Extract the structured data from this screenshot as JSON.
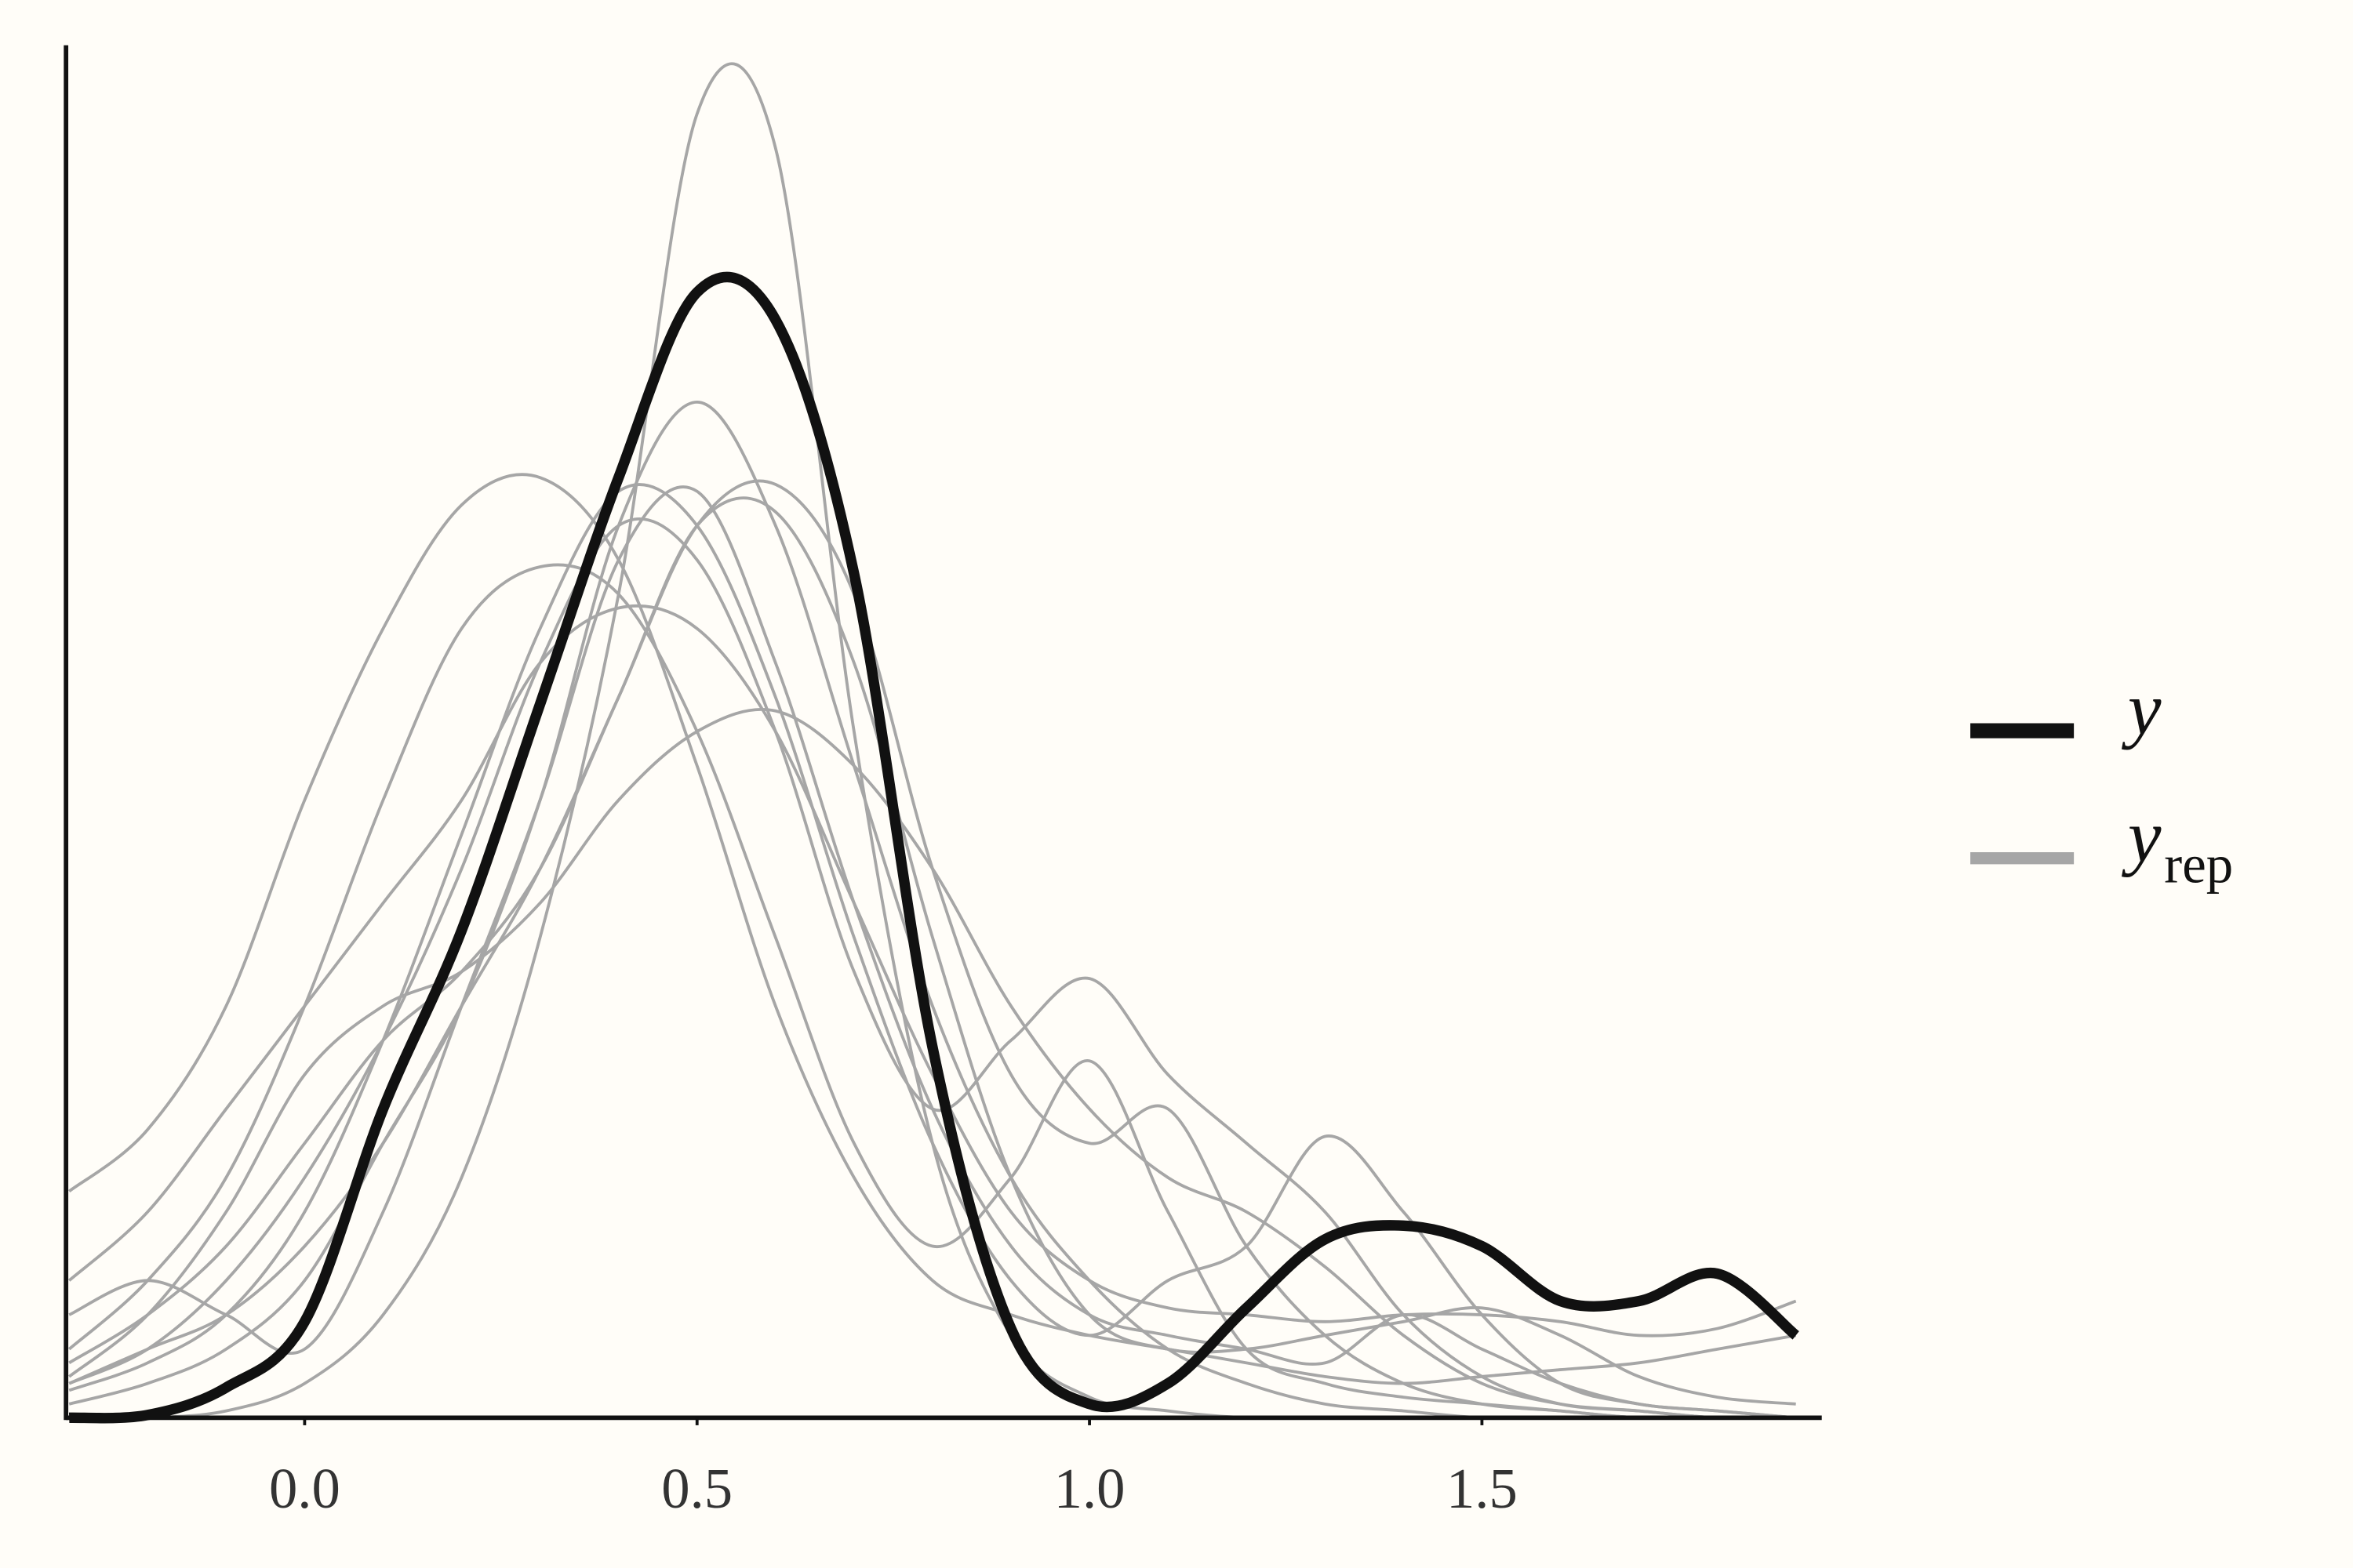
{
  "chart_data": {
    "type": "line",
    "x": [
      -0.3,
      -0.2,
      -0.1,
      0,
      0.1,
      0.2,
      0.3,
      0.4,
      0.5,
      0.6,
      0.7,
      0.8,
      0.9,
      1,
      1.1,
      1.2,
      1.3,
      1.4,
      1.5,
      1.6,
      1.7,
      1.8,
      1.9
    ],
    "xlim": [
      -0.304,
      1.933
    ],
    "xticks": [
      {
        "value": 0,
        "label": "0.0"
      },
      0.5,
      {
        "value": 1,
        "label": "1.0"
      },
      1.5
    ],
    "ylim": [
      0,
      2.0
    ],
    "series": [
      {
        "name": "y",
        "color": "#111111",
        "values": [
          0,
          0.004,
          0.044,
          0.14,
          0.45,
          0.71,
          1.04,
          1.37,
          1.64,
          1.6,
          1.23,
          0.54,
          0.13,
          0.02,
          0.05,
          0.16,
          0.26,
          0.28,
          0.25,
          0.17,
          0.17,
          0.21,
          0.12
        ]
      },
      {
        "color": "#a6a6a6",
        "values": [
          0,
          0,
          0.01,
          0.05,
          0.15,
          0.35,
          0.7,
          1.2,
          1.9,
          1.85,
          1.0,
          0.4,
          0.12,
          0.03,
          0.01,
          0,
          0,
          0,
          0,
          0,
          0,
          0,
          0
        ]
      },
      {
        "color": "#a6a6a6",
        "values": [
          0.33,
          0.42,
          0.6,
          0.9,
          1.15,
          1.33,
          1.37,
          1.25,
          0.95,
          0.6,
          0.35,
          0.2,
          0.15,
          0.12,
          0.1,
          0.08,
          0.06,
          0.05,
          0.06,
          0.07,
          0.08,
          0.1,
          0.12
        ]
      },
      {
        "color": "#a6a6a6",
        "values": [
          0.02,
          0.05,
          0.1,
          0.2,
          0.4,
          0.6,
          0.9,
          1.3,
          1.48,
          1.3,
          0.95,
          0.6,
          0.35,
          0.2,
          0.1,
          0.05,
          0.02,
          0.01,
          0,
          0,
          0,
          0,
          0
        ]
      },
      {
        "color": "#a6a6a6",
        "values": [
          0.05,
          0.1,
          0.15,
          0.25,
          0.4,
          0.6,
          0.8,
          1.05,
          1.3,
          1.36,
          1.2,
          0.8,
          0.5,
          0.4,
          0.45,
          0.25,
          0.12,
          0.05,
          0.02,
          0.01,
          0,
          0,
          0
        ]
      },
      {
        "color": "#a6a6a6",
        "values": [
          0.06,
          0.15,
          0.3,
          0.5,
          0.6,
          0.65,
          0.75,
          0.9,
          1.0,
          1.03,
          0.95,
          0.8,
          0.6,
          0.45,
          0.35,
          0.3,
          0.22,
          0.12,
          0.05,
          0.02,
          0.01,
          0,
          0
        ]
      },
      {
        "color": "#a6a6a6",
        "values": [
          0.1,
          0.2,
          0.35,
          0.6,
          0.9,
          1.15,
          1.24,
          1.2,
          1.0,
          0.7,
          0.4,
          0.25,
          0.35,
          0.52,
          0.3,
          0.1,
          0.05,
          0.03,
          0.02,
          0.01,
          0,
          0,
          0
        ]
      },
      {
        "color": "#a6a6a6",
        "values": [
          0.05,
          0.1,
          0.2,
          0.35,
          0.55,
          0.8,
          1.1,
          1.3,
          1.25,
          1.0,
          0.65,
          0.45,
          0.55,
          0.64,
          0.5,
          0.4,
          0.3,
          0.15,
          0.06,
          0.02,
          0.01,
          0,
          0
        ]
      },
      {
        "color": "#a6a6a6",
        "values": [
          0.04,
          0.08,
          0.15,
          0.3,
          0.55,
          0.85,
          1.15,
          1.35,
          1.3,
          1.05,
          0.7,
          0.4,
          0.2,
          0.12,
          0.2,
          0.25,
          0.41,
          0.3,
          0.15,
          0.05,
          0.02,
          0.01,
          0
        ]
      },
      {
        "color": "#a6a6a6",
        "values": [
          0.2,
          0.3,
          0.45,
          0.6,
          0.75,
          0.9,
          1.1,
          1.18,
          1.15,
          1.0,
          0.75,
          0.5,
          0.3,
          0.2,
          0.16,
          0.15,
          0.14,
          0.15,
          0.15,
          0.14,
          0.12,
          0.13,
          0.17
        ]
      },
      {
        "color": "#a6a6a6",
        "values": [
          0.15,
          0.2,
          0.15,
          0.1,
          0.3,
          0.6,
          0.9,
          1.25,
          1.35,
          1.1,
          0.75,
          0.45,
          0.25,
          0.15,
          0.12,
          0.1,
          0.08,
          0.15,
          0.1,
          0.05,
          0.02,
          0.01,
          0
        ]
      },
      {
        "color": "#a6a6a6",
        "values": [
          0.08,
          0.15,
          0.25,
          0.4,
          0.55,
          0.65,
          0.8,
          1.05,
          1.3,
          1.32,
          1.1,
          0.7,
          0.35,
          0.15,
          0.1,
          0.1,
          0.12,
          0.14,
          0.16,
          0.12,
          0.06,
          0.03,
          0.02
        ]
      }
    ],
    "legend": [
      {
        "label": "y"
      },
      {
        "label": "y",
        "subscript": "rep"
      }
    ]
  }
}
